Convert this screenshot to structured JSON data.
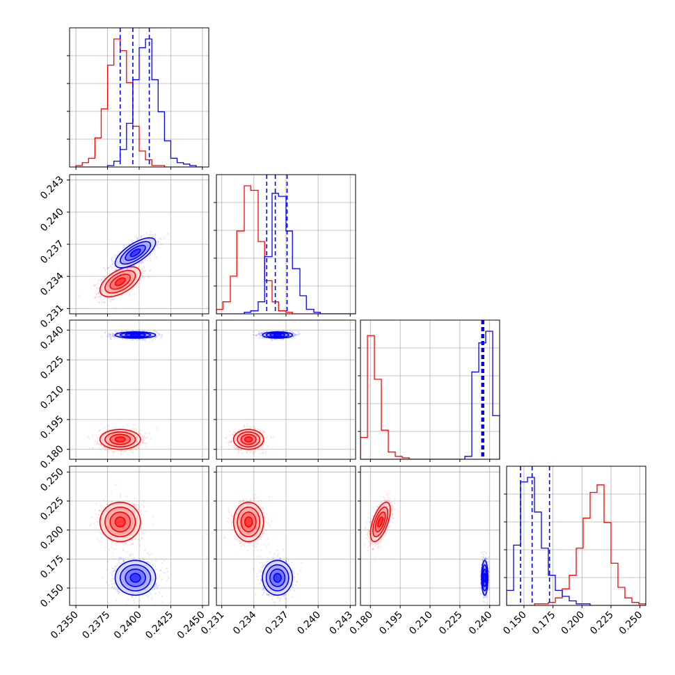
{
  "chart_data": {
    "type": "corner",
    "colors": {
      "model_a": "#ff0000",
      "model_b": "#0000ff"
    },
    "axes": [
      {
        "range": [
          0.2345,
          0.2455
        ],
        "ticks": [
          "0.2350",
          "0.2375",
          "0.2400",
          "0.2425",
          "0.2450"
        ],
        "tick_values": [
          0.235,
          0.2375,
          0.24,
          0.2425,
          0.245
        ]
      },
      {
        "range": [
          0.2305,
          0.2435
        ],
        "ticks": [
          "0.231",
          "0.234",
          "0.237",
          "0.240",
          "0.243"
        ],
        "tick_values": [
          0.231,
          0.234,
          0.237,
          0.24,
          0.243
        ]
      },
      {
        "range": [
          0.175,
          0.245
        ],
        "ticks": [
          "0.180",
          "0.195",
          "0.210",
          "0.225",
          "0.240"
        ],
        "tick_values": [
          0.18,
          0.195,
          0.21,
          0.225,
          0.24
        ]
      },
      {
        "range": [
          0.135,
          0.255
        ],
        "ticks": [
          "0.150",
          "0.175",
          "0.200",
          "0.225",
          "0.250"
        ],
        "tick_values": [
          0.15,
          0.175,
          0.2,
          0.225,
          0.25
        ]
      }
    ],
    "grid": true,
    "series": [
      {
        "color": "#ff0000",
        "means": [
          0.2385,
          0.2335,
          0.185,
          0.207
        ],
        "sigmas": [
          0.0008,
          0.0007,
          0.0025,
          0.0085
        ],
        "correlations": {
          "1-0": 0.55,
          "2-0": 0.0,
          "2-1": 0.0,
          "3-0": 0.0,
          "3-1": 0.0,
          "3-2": 0.6
        },
        "histograms": [
          {
            "edges": [
              0.235,
              0.2355,
              0.236,
              0.2365,
              0.237,
              0.2375,
              0.238,
              0.2385,
              0.239,
              0.2395,
              0.24,
              0.2405,
              0.241,
              0.2415,
              0.242,
              0.2425,
              0.243,
              0.2435,
              0.244,
              0.2445,
              0.245
            ],
            "counts": [
              1,
              3,
              6,
              20,
              40,
              70,
              88,
              80,
              58,
              28,
              11,
              5,
              1,
              1,
              0,
              0,
              0,
              0,
              0,
              0
            ]
          },
          {
            "edges": [
              0.2305,
              0.2311,
              0.2318,
              0.2324,
              0.2331,
              0.2337,
              0.2344,
              0.235,
              0.2357,
              0.2363,
              0.237,
              0.2376,
              0.2383,
              0.2389,
              0.2396,
              0.2402,
              0.2409,
              0.2415,
              0.2422,
              0.2428,
              0.2435
            ],
            "counts": [
              3,
              8,
              25,
              55,
              85,
              82,
              48,
              22,
              8,
              2,
              1,
              0,
              0,
              0,
              0,
              0,
              0,
              0,
              0,
              0
            ]
          },
          {
            "edges": [
              0.175,
              0.1785,
              0.182,
              0.1855,
              0.189,
              0.1925,
              0.196,
              0.1995,
              0.203,
              0.2065,
              0.21,
              0.2135,
              0.217,
              0.2205,
              0.224,
              0.2275,
              0.231,
              0.2345,
              0.238,
              0.2415,
              0.245
            ],
            "counts": [
              15,
              85,
              55,
              20,
              5,
              2,
              1,
              0,
              0,
              0,
              0,
              0,
              0,
              0,
              0,
              0,
              0,
              0,
              0,
              0
            ]
          },
          {
            "edges": [
              0.135,
              0.141,
              0.147,
              0.153,
              0.159,
              0.165,
              0.171,
              0.177,
              0.183,
              0.189,
              0.195,
              0.201,
              0.207,
              0.213,
              0.219,
              0.225,
              0.231,
              0.237,
              0.243,
              0.249,
              0.255
            ],
            "counts": [
              0,
              0,
              0,
              0,
              1,
              1,
              2,
              5,
              11,
              20,
              38,
              58,
              75,
              80,
              55,
              28,
              12,
              5,
              2,
              1
            ]
          }
        ]
      },
      {
        "color": "#0000ff",
        "means": [
          0.2397,
          0.2362,
          0.2375,
          0.1588
        ],
        "sigmas": [
          0.0008,
          0.0007,
          0.0008,
          0.0075
        ],
        "correlations": {
          "1-0": 0.7,
          "2-0": 0.0,
          "2-1": 0.0,
          "3-0": 0.0,
          "3-1": 0.0,
          "3-2": 0.0
        },
        "quantiles": [
          [
            0.2385,
            0.2395,
            0.2408
          ],
          [
            0.2352,
            0.236,
            0.2371
          ],
          [
            0.236,
            0.2365,
            0.237
          ],
          [
            0.147,
            0.157,
            0.172
          ]
        ],
        "histograms": [
          {
            "edges": [
              0.235,
              0.2355,
              0.236,
              0.2365,
              0.237,
              0.2375,
              0.238,
              0.2385,
              0.239,
              0.2395,
              0.24,
              0.2405,
              0.241,
              0.2415,
              0.242,
              0.2425,
              0.243,
              0.2435,
              0.244,
              0.2445,
              0.245
            ],
            "counts": [
              0,
              0,
              0,
              0,
              0,
              1,
              4,
              12,
              30,
              60,
              82,
              88,
              60,
              38,
              18,
              6,
              3,
              2,
              1,
              0
            ]
          },
          {
            "edges": [
              0.2305,
              0.2311,
              0.2318,
              0.2324,
              0.2331,
              0.2337,
              0.2344,
              0.235,
              0.2357,
              0.2363,
              0.237,
              0.2376,
              0.2383,
              0.2389,
              0.2396,
              0.2402,
              0.2409,
              0.2415,
              0.2422,
              0.2428,
              0.2435
            ],
            "counts": [
              0,
              0,
              0,
              0,
              1,
              2,
              8,
              38,
              80,
              78,
              55,
              30,
              12,
              3,
              1,
              0,
              0,
              0,
              0,
              0
            ]
          },
          {
            "edges": [
              0.175,
              0.1785,
              0.182,
              0.1855,
              0.189,
              0.1925,
              0.196,
              0.1995,
              0.203,
              0.2065,
              0.21,
              0.2135,
              0.217,
              0.2205,
              0.224,
              0.2275,
              0.231,
              0.2345,
              0.238,
              0.2415,
              0.245
            ],
            "counts": [
              0,
              0,
              0,
              0,
              0,
              0,
              0,
              0,
              0,
              0,
              0,
              0,
              0,
              0,
              0,
              2,
              60,
              80,
              88,
              30
            ]
          },
          {
            "edges": [
              0.135,
              0.141,
              0.147,
              0.153,
              0.159,
              0.165,
              0.171,
              0.177,
              0.183,
              0.189,
              0.195,
              0.201,
              0.207,
              0.213,
              0.219,
              0.225,
              0.231,
              0.237,
              0.243,
              0.249,
              0.255
            ],
            "counts": [
              10,
              40,
              82,
              85,
              62,
              38,
              20,
              10,
              6,
              3,
              1,
              1,
              0,
              0,
              0,
              0,
              0,
              0,
              0,
              0
            ]
          }
        ]
      }
    ]
  }
}
